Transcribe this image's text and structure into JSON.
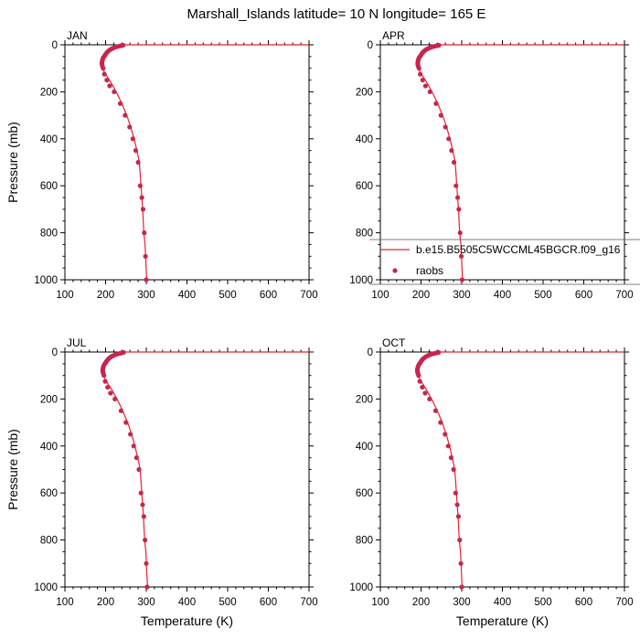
{
  "title": "Marshall_Islands  latitude= 10 N longitude= 165 E",
  "colors": {
    "model": "#e8202a",
    "raobs": "#c8254e",
    "axis": "#000000"
  },
  "legend": {
    "model_label": "b.e15.B5505C5WCCML45BGCR.f09_g16",
    "obs_label": "raobs"
  },
  "chart_data": [
    {
      "type": "line",
      "panel": "JAN",
      "xlabel": "",
      "ylabel": "Pressure (mb)",
      "xlim": [
        100,
        700
      ],
      "ylim": [
        0,
        1000
      ],
      "y_inverted": true,
      "xticks": [
        100,
        200,
        300,
        400,
        500,
        600,
        700
      ],
      "yticks": [
        0,
        200,
        400,
        600,
        800,
        1000
      ],
      "series": [
        {
          "name": "b.e15.B5505C5WCCML45BGCR.f09_g16",
          "kind": "line",
          "x": [
            240,
            236,
            231,
            226,
            222,
            218,
            212,
            205,
            200,
            196,
            193,
            192,
            192,
            195,
            202,
            213,
            226,
            240,
            252,
            262,
            270,
            277,
            283,
            287,
            291,
            294,
            297,
            299,
            301
          ],
          "y": [
            1,
            2,
            4,
            6,
            9,
            13,
            20,
            30,
            40,
            52,
            66,
            80,
            95,
            110,
            130,
            160,
            200,
            250,
            300,
            350,
            400,
            450,
            500,
            600,
            700,
            800,
            850,
            925,
            1000
          ]
        },
        {
          "name": "raobs",
          "kind": "scatter",
          "x": [
            243,
            238,
            233,
            228,
            224,
            220,
            215,
            210,
            206,
            203,
            200,
            198,
            195,
            193,
            192,
            191,
            191,
            192,
            194,
            197,
            203,
            210,
            221,
            236,
            248,
            259,
            267,
            274,
            280,
            285,
            289,
            292,
            295,
            298,
            300
          ],
          "y": [
            2,
            4,
            6,
            8,
            10,
            13,
            17,
            22,
            28,
            33,
            40,
            46,
            53,
            60,
            67,
            75,
            82,
            90,
            100,
            125,
            150,
            175,
            200,
            250,
            300,
            350,
            400,
            450,
            500,
            600,
            650,
            700,
            800,
            900,
            1000
          ]
        }
      ]
    },
    {
      "type": "line",
      "panel": "APR",
      "xlabel": "",
      "ylabel": "",
      "xlim": [
        100,
        700
      ],
      "ylim": [
        0,
        1000
      ],
      "y_inverted": true,
      "xticks": [
        100,
        200,
        300,
        400,
        500,
        600,
        700
      ],
      "yticks": [
        0,
        200,
        400,
        600,
        800,
        1000
      ],
      "series": [
        {
          "name": "b.e15.B5505C5WCCML45BGCR.f09_g16",
          "kind": "line",
          "x": [
            242,
            237,
            232,
            227,
            223,
            219,
            213,
            206,
            201,
            197,
            194,
            193,
            193,
            196,
            203,
            214,
            227,
            241,
            253,
            263,
            271,
            278,
            284,
            288,
            292,
            295,
            298,
            300,
            302
          ],
          "y": [
            1,
            2,
            4,
            6,
            9,
            13,
            20,
            30,
            40,
            52,
            66,
            80,
            95,
            110,
            130,
            160,
            200,
            250,
            300,
            350,
            400,
            450,
            500,
            600,
            700,
            800,
            850,
            925,
            1000
          ]
        },
        {
          "name": "raobs",
          "kind": "scatter",
          "x": [
            244,
            239,
            234,
            229,
            225,
            221,
            216,
            211,
            207,
            204,
            201,
            199,
            196,
            194,
            193,
            192,
            192,
            193,
            195,
            198,
            204,
            211,
            222,
            237,
            249,
            260,
            268,
            275,
            281,
            286,
            290,
            293,
            296,
            299,
            301
          ],
          "y": [
            2,
            4,
            6,
            8,
            10,
            13,
            17,
            22,
            28,
            33,
            40,
            46,
            53,
            60,
            67,
            75,
            82,
            90,
            100,
            125,
            150,
            175,
            200,
            250,
            300,
            350,
            400,
            450,
            500,
            600,
            650,
            700,
            800,
            900,
            1000
          ]
        }
      ]
    },
    {
      "type": "line",
      "panel": "JUL",
      "xlabel": "Temperature (K)",
      "ylabel": "Pressure (mb)",
      "xlim": [
        100,
        700
      ],
      "ylim": [
        0,
        1000
      ],
      "y_inverted": true,
      "xticks": [
        100,
        200,
        300,
        400,
        500,
        600,
        700
      ],
      "yticks": [
        0,
        200,
        400,
        600,
        800,
        1000
      ],
      "series": [
        {
          "name": "b.e15.B5505C5WCCML45BGCR.f09_g16",
          "kind": "line",
          "x": [
            241,
            237,
            232,
            228,
            224,
            220,
            214,
            207,
            202,
            198,
            195,
            194,
            194,
            197,
            204,
            215,
            228,
            242,
            254,
            264,
            272,
            279,
            285,
            289,
            293,
            296,
            299,
            301,
            303
          ],
          "y": [
            1,
            2,
            4,
            6,
            9,
            13,
            20,
            30,
            40,
            52,
            66,
            80,
            95,
            110,
            130,
            160,
            200,
            250,
            300,
            350,
            400,
            450,
            500,
            600,
            700,
            800,
            850,
            925,
            1000
          ]
        },
        {
          "name": "raobs",
          "kind": "scatter",
          "x": [
            244,
            239,
            235,
            230,
            226,
            222,
            217,
            212,
            208,
            205,
            202,
            200,
            197,
            195,
            194,
            193,
            193,
            194,
            196,
            199,
            205,
            212,
            223,
            238,
            250,
            261,
            269,
            276,
            282,
            287,
            291,
            294,
            297,
            300,
            302
          ],
          "y": [
            2,
            4,
            6,
            8,
            10,
            13,
            17,
            22,
            28,
            33,
            40,
            46,
            53,
            60,
            67,
            75,
            82,
            90,
            100,
            125,
            150,
            175,
            200,
            250,
            300,
            350,
            400,
            450,
            500,
            600,
            650,
            700,
            800,
            900,
            1000
          ]
        }
      ]
    },
    {
      "type": "line",
      "panel": "OCT",
      "xlabel": "Temperature (K)",
      "ylabel": "",
      "xlim": [
        100,
        700
      ],
      "ylim": [
        0,
        1000
      ],
      "y_inverted": true,
      "xticks": [
        100,
        200,
        300,
        400,
        500,
        600,
        700
      ],
      "yticks": [
        0,
        200,
        400,
        600,
        800,
        1000
      ],
      "series": [
        {
          "name": "b.e15.B5505C5WCCML45BGCR.f09_g16",
          "kind": "line",
          "x": [
            241,
            236,
            231,
            226,
            222,
            218,
            212,
            205,
            200,
            196,
            193,
            192,
            192,
            195,
            202,
            213,
            226,
            240,
            252,
            262,
            270,
            277,
            283,
            287,
            291,
            294,
            297,
            299,
            301
          ],
          "y": [
            1,
            2,
            4,
            6,
            9,
            13,
            20,
            30,
            40,
            52,
            66,
            80,
            95,
            110,
            130,
            160,
            200,
            250,
            300,
            350,
            400,
            450,
            500,
            600,
            700,
            800,
            850,
            925,
            1000
          ]
        },
        {
          "name": "raobs",
          "kind": "scatter",
          "x": [
            243,
            238,
            233,
            228,
            224,
            220,
            215,
            210,
            206,
            203,
            200,
            198,
            195,
            193,
            192,
            191,
            191,
            192,
            194,
            197,
            203,
            210,
            221,
            236,
            248,
            259,
            267,
            274,
            280,
            285,
            289,
            292,
            295,
            298,
            300
          ],
          "y": [
            2,
            4,
            6,
            8,
            10,
            13,
            17,
            22,
            28,
            33,
            40,
            46,
            53,
            60,
            67,
            75,
            82,
            90,
            100,
            125,
            150,
            175,
            200,
            250,
            300,
            350,
            400,
            450,
            500,
            600,
            650,
            700,
            800,
            900,
            1000
          ]
        }
      ]
    }
  ]
}
